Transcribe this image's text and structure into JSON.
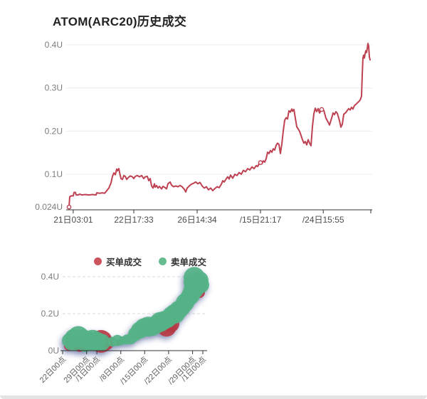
{
  "page": {
    "title": "ATOM(ARC20)历史成交"
  },
  "chart_data": [
    {
      "type": "line",
      "title": "ATOM(ARC20)历史成交",
      "unit": "U",
      "ylim": [
        0.018,
        0.41
      ],
      "grid": "horizontal-solid",
      "y_ticks": [
        {
          "label": "0.4U",
          "v": 0.4
        },
        {
          "label": "0.3U",
          "v": 0.3
        },
        {
          "label": "0.2U",
          "v": 0.2
        },
        {
          "label": "0.1U",
          "v": 0.1
        },
        {
          "label": "0.024U",
          "v": 0.024
        }
      ],
      "x_ticks": [
        {
          "label": "21日03:01",
          "f": 0.023
        },
        {
          "label": "22日17:33",
          "f": 0.221
        },
        {
          "label": "26日14:34",
          "f": 0.428
        },
        {
          "label": "/15日21:17",
          "f": 0.635
        },
        {
          "label": "/24日15:55",
          "f": 0.84
        }
      ],
      "series": [
        {
          "name": "price",
          "color": "#bd4150",
          "markers": [
            [
              4,
              0.024
            ],
            [
              273,
              0.127
            ],
            [
              359,
              0.25
            ]
          ],
          "points": [
            [
              4,
              0.024
            ],
            [
              5,
              0.048
            ],
            [
              7,
              0.05
            ],
            [
              10,
              0.05
            ],
            [
              11,
              0.058
            ],
            [
              13,
              0.058
            ],
            [
              14,
              0.052
            ],
            [
              17,
              0.052
            ],
            [
              19,
              0.054
            ],
            [
              22,
              0.052
            ],
            [
              27,
              0.053
            ],
            [
              32,
              0.052
            ],
            [
              37,
              0.053
            ],
            [
              42,
              0.052
            ],
            [
              43,
              0.057
            ],
            [
              47,
              0.056
            ],
            [
              51,
              0.057
            ],
            [
              54,
              0.056
            ],
            [
              57,
              0.062
            ],
            [
              60,
              0.068
            ],
            [
              63,
              0.08
            ],
            [
              65,
              0.095
            ],
            [
              67,
              0.103
            ],
            [
              69,
              0.099
            ],
            [
              71,
              0.112
            ],
            [
              72,
              0.108
            ],
            [
              74,
              0.113
            ],
            [
              75,
              0.104
            ],
            [
              77,
              0.09
            ],
            [
              79,
              0.088
            ],
            [
              81,
              0.097
            ],
            [
              83,
              0.095
            ],
            [
              85,
              0.088
            ],
            [
              87,
              0.092
            ],
            [
              90,
              0.096
            ],
            [
              93,
              0.094
            ],
            [
              95,
              0.09
            ],
            [
              97,
              0.095
            ],
            [
              100,
              0.097
            ],
            [
              103,
              0.094
            ],
            [
              106,
              0.097
            ],
            [
              109,
              0.09
            ],
            [
              111,
              0.094
            ],
            [
              114,
              0.095
            ],
            [
              116,
              0.085
            ],
            [
              118,
              0.09
            ],
            [
              120,
              0.073
            ],
            [
              122,
              0.068
            ],
            [
              124,
              0.078
            ],
            [
              125,
              0.07
            ],
            [
              127,
              0.074
            ],
            [
              129,
              0.068
            ],
            [
              131,
              0.072
            ],
            [
              134,
              0.066
            ],
            [
              136,
              0.072
            ],
            [
              139,
              0.069
            ],
            [
              141,
              0.066
            ],
            [
              143,
              0.078
            ],
            [
              146,
              0.082
            ],
            [
              148,
              0.075
            ],
            [
              151,
              0.071
            ],
            [
              154,
              0.073
            ],
            [
              157,
              0.071
            ],
            [
              160,
              0.074
            ],
            [
              163,
              0.071
            ],
            [
              166,
              0.065
            ],
            [
              168,
              0.059
            ],
            [
              170,
              0.068
            ],
            [
              173,
              0.073
            ],
            [
              176,
              0.077
            ],
            [
              179,
              0.079
            ],
            [
              182,
              0.082
            ],
            [
              185,
              0.078
            ],
            [
              188,
              0.081
            ],
            [
              191,
              0.073
            ],
            [
              194,
              0.068
            ],
            [
              197,
              0.071
            ],
            [
              200,
              0.064
            ],
            [
              203,
              0.068
            ],
            [
              206,
              0.062
            ],
            [
              209,
              0.067
            ],
            [
              212,
              0.071
            ],
            [
              215,
              0.069
            ],
            [
              218,
              0.077
            ],
            [
              220,
              0.085
            ],
            [
              222,
              0.082
            ],
            [
              225,
              0.09
            ],
            [
              227,
              0.094
            ],
            [
              229,
              0.089
            ],
            [
              231,
              0.098
            ],
            [
              234,
              0.091
            ],
            [
              237,
              0.1
            ],
            [
              240,
              0.097
            ],
            [
              243,
              0.104
            ],
            [
              246,
              0.1
            ],
            [
              249,
              0.109
            ],
            [
              252,
              0.106
            ],
            [
              255,
              0.113
            ],
            [
              258,
              0.11
            ],
            [
              261,
              0.117
            ],
            [
              264,
              0.113
            ],
            [
              267,
              0.12
            ],
            [
              269,
              0.118
            ],
            [
              271,
              0.124
            ],
            [
              273,
              0.127
            ],
            [
              275,
              0.124
            ],
            [
              277,
              0.131
            ],
            [
              279,
              0.128
            ],
            [
              281,
              0.136
            ],
            [
              283,
              0.151
            ],
            [
              285,
              0.148
            ],
            [
              287,
              0.155
            ],
            [
              289,
              0.151
            ],
            [
              291,
              0.159
            ],
            [
              293,
              0.156
            ],
            [
              295,
              0.167
            ],
            [
              297,
              0.172
            ],
            [
              299,
              0.169
            ],
            [
              301,
              0.148
            ],
            [
              303,
              0.17
            ],
            [
              305,
              0.2
            ],
            [
              307,
              0.225
            ],
            [
              309,
              0.231
            ],
            [
              311,
              0.228
            ],
            [
              313,
              0.247
            ],
            [
              315,
              0.244
            ],
            [
              317,
              0.251
            ],
            [
              318,
              0.246
            ],
            [
              320,
              0.25
            ],
            [
              322,
              0.23
            ],
            [
              324,
              0.21
            ],
            [
              326,
              0.205
            ],
            [
              328,
              0.199
            ],
            [
              330,
              0.19
            ],
            [
              332,
              0.18
            ],
            [
              334,
              0.172
            ],
            [
              336,
              0.176
            ],
            [
              338,
              0.168
            ],
            [
              340,
              0.18
            ],
            [
              342,
              0.172
            ],
            [
              344,
              0.166
            ],
            [
              346,
              0.21
            ],
            [
              348,
              0.24
            ],
            [
              350,
              0.253
            ],
            [
              352,
              0.245
            ],
            [
              354,
              0.252
            ],
            [
              356,
              0.242
            ],
            [
              359,
              0.25
            ],
            [
              362,
              0.248
            ],
            [
              365,
              0.23
            ],
            [
              368,
              0.221
            ],
            [
              370,
              0.214
            ],
            [
              373,
              0.23
            ],
            [
              375,
              0.242
            ],
            [
              377,
              0.238
            ],
            [
              379,
              0.245
            ],
            [
              381,
              0.241
            ],
            [
              384,
              0.224
            ],
            [
              386,
              0.209
            ],
            [
              388,
              0.216
            ],
            [
              390,
              0.239
            ],
            [
              393,
              0.243
            ],
            [
              395,
              0.248
            ],
            [
              397,
              0.252
            ],
            [
              399,
              0.249
            ],
            [
              401,
              0.255
            ],
            [
              403,
              0.251
            ],
            [
              405,
              0.259
            ],
            [
              407,
              0.262
            ],
            [
              409,
              0.265
            ],
            [
              411,
              0.268
            ],
            [
              413,
              0.272
            ],
            [
              414,
              0.276
            ],
            [
              415,
              0.281
            ],
            [
              416,
              0.33
            ],
            [
              417,
              0.37
            ],
            [
              418,
              0.376
            ],
            [
              419,
              0.369
            ],
            [
              420,
              0.379
            ],
            [
              421,
              0.386
            ],
            [
              422,
              0.382
            ],
            [
              423,
              0.391
            ],
            [
              424,
              0.403
            ],
            [
              425,
              0.397
            ],
            [
              426,
              0.372
            ],
            [
              427,
              0.365
            ]
          ]
        }
      ]
    },
    {
      "type": "scatter",
      "unit": "U",
      "ylim": [
        0,
        0.44
      ],
      "grid": "horizontal-dashed",
      "y_ticks": [
        {
          "label": "0.4U",
          "v": 0.4
        },
        {
          "label": "0.2U",
          "v": 0.2
        },
        {
          "label": "0U",
          "v": 0
        }
      ],
      "x_ticks": [
        {
          "label": "22日00点",
          "f": 0
        },
        {
          "label": "29日00点",
          "f": 0.171
        },
        {
          "label": "/1日00点",
          "f": 0.244
        },
        {
          "label": "/8日00点",
          "f": 0.415
        },
        {
          "label": "/15日00点",
          "f": 0.585
        },
        {
          "label": "/22日00点",
          "f": 0.756
        },
        {
          "label": "/29日00点",
          "f": 0.927
        },
        {
          "label": "/1日00点",
          "f": 1.0
        }
      ],
      "legend": [
        {
          "label": "买单成交",
          "color": "#cc545c"
        },
        {
          "label": "卖单成交",
          "color": "#67bd90"
        }
      ],
      "series": [
        {
          "name": "买单成交",
          "color": "#b63a44",
          "points": [
            [
              8,
              0.024,
              6
            ],
            [
              24,
              0.028,
              9
            ],
            [
              54,
              0.05,
              16
            ],
            [
              62,
              0.042,
              10
            ],
            [
              79,
              0.045,
              4
            ],
            [
              146,
              0.13,
              14
            ],
            [
              152,
              0.145,
              12
            ],
            [
              192,
              0.315,
              8
            ]
          ]
        },
        {
          "name": "卖单成交",
          "color": "#55b287",
          "points": [
            [
              9,
              0.055,
              10
            ],
            [
              15,
              0.07,
              12
            ],
            [
              22,
              0.075,
              15
            ],
            [
              29,
              0.065,
              13
            ],
            [
              36,
              0.06,
              12
            ],
            [
              42,
              0.055,
              15
            ],
            [
              49,
              0.05,
              13
            ],
            [
              55,
              0.045,
              12
            ],
            [
              47,
              0.038,
              10
            ],
            [
              32,
              0.038,
              12
            ],
            [
              17,
              0.034,
              9
            ],
            [
              10,
              0.03,
              7
            ],
            [
              70,
              0.048,
              7
            ],
            [
              77,
              0.055,
              8
            ],
            [
              84,
              0.054,
              6
            ],
            [
              90,
              0.06,
              7
            ],
            [
              96,
              0.065,
              8
            ],
            [
              102,
              0.09,
              10
            ],
            [
              108,
              0.11,
              12
            ],
            [
              114,
              0.125,
              13
            ],
            [
              120,
              0.13,
              14
            ],
            [
              126,
              0.125,
              12
            ],
            [
              131,
              0.14,
              13
            ],
            [
              137,
              0.155,
              14
            ],
            [
              143,
              0.165,
              13
            ],
            [
              148,
              0.17,
              12
            ],
            [
              153,
              0.19,
              13
            ],
            [
              158,
              0.2,
              14
            ],
            [
              163,
              0.22,
              13
            ],
            [
              168,
              0.235,
              12
            ],
            [
              172,
              0.26,
              13
            ],
            [
              176,
              0.28,
              12
            ],
            [
              180,
              0.3,
              13
            ],
            [
              182,
              0.37,
              12
            ],
            [
              184,
              0.33,
              14
            ],
            [
              185,
              0.395,
              15
            ],
            [
              188,
              0.36,
              16
            ],
            [
              192,
              0.38,
              13
            ],
            [
              195,
              0.355,
              11
            ]
          ]
        }
      ]
    }
  ]
}
